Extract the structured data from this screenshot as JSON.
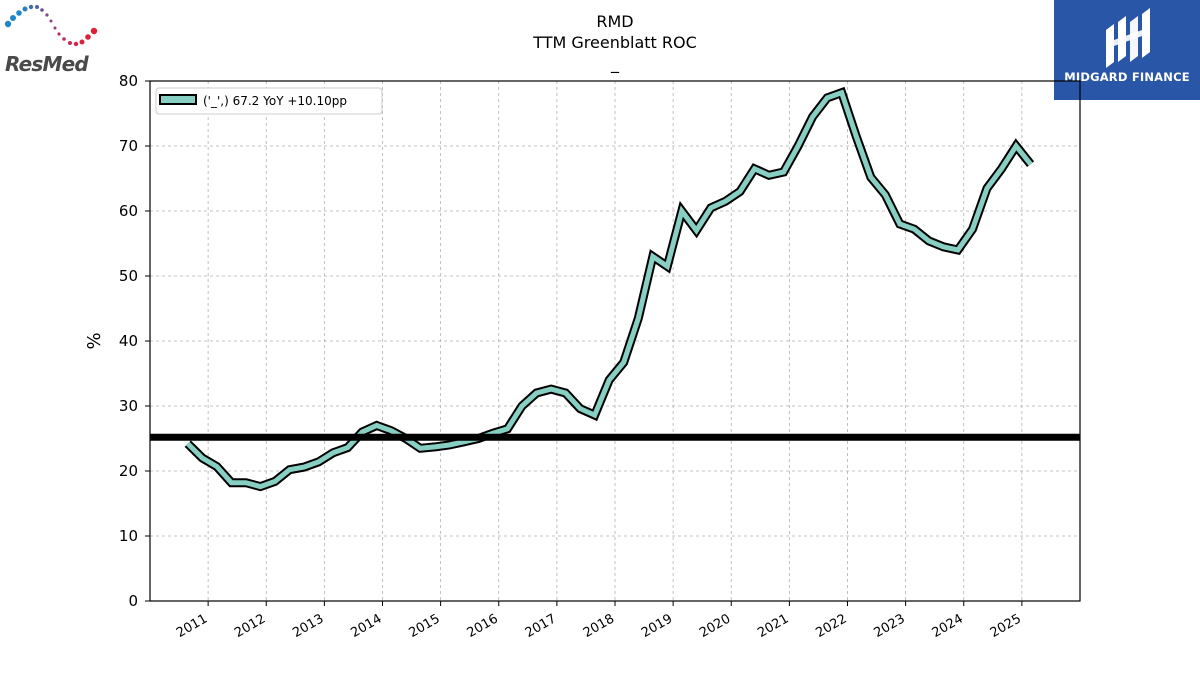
{
  "brand_left": {
    "name": "ResMed"
  },
  "brand_right": {
    "name": "MIDGARD FINANCE"
  },
  "chart_data": {
    "type": "line",
    "title": "RMD",
    "subtitle": "TTM Greenblatt ROC",
    "subtitle2": "_",
    "xlabel": "",
    "ylabel": "%",
    "ylim": [
      0,
      80
    ],
    "xlim": [
      2010.0,
      2026.0
    ],
    "yticks": [
      0,
      10,
      20,
      30,
      40,
      50,
      60,
      70,
      80
    ],
    "xticks": [
      "2011",
      "2012",
      "2013",
      "2014",
      "2015",
      "2016",
      "2017",
      "2018",
      "2019",
      "2020",
      "2021",
      "2022",
      "2023",
      "2024",
      "2025"
    ],
    "grid": true,
    "legend_position": "top-left",
    "colors": {
      "line": "#88cfc3",
      "outline": "#000000",
      "hline": "#000000"
    },
    "hline": {
      "value": 25.2
    },
    "series": [
      {
        "name": "('_',) 67.2 YoY +10.10pp",
        "x": [
          2010.65,
          2010.9,
          2011.15,
          2011.4,
          2011.65,
          2011.9,
          2012.15,
          2012.4,
          2012.65,
          2012.9,
          2013.15,
          2013.4,
          2013.65,
          2013.9,
          2014.15,
          2014.4,
          2014.65,
          2014.9,
          2015.15,
          2015.4,
          2015.65,
          2015.9,
          2016.15,
          2016.4,
          2016.65,
          2016.9,
          2017.15,
          2017.4,
          2017.65,
          2017.9,
          2018.15,
          2018.4,
          2018.65,
          2018.9,
          2019.15,
          2019.4,
          2019.65,
          2019.9,
          2020.15,
          2020.4,
          2020.65,
          2020.9,
          2021.15,
          2021.4,
          2021.65,
          2021.9,
          2022.15,
          2022.4,
          2022.65,
          2022.9,
          2023.15,
          2023.4,
          2023.65,
          2023.9,
          2024.15,
          2024.4,
          2024.65,
          2024.9,
          2025.15
        ],
        "values": [
          24.2,
          22.0,
          20.7,
          18.2,
          18.2,
          17.6,
          18.4,
          20.2,
          20.6,
          21.4,
          22.8,
          23.6,
          26.0,
          27.0,
          26.2,
          25.0,
          23.5,
          23.7,
          24.0,
          24.5,
          25.0,
          25.8,
          26.5,
          30.0,
          32.0,
          32.6,
          32.0,
          29.6,
          28.6,
          34.0,
          36.7,
          43.5,
          53.0,
          51.5,
          60.0,
          57.0,
          60.5,
          61.5,
          63.0,
          66.5,
          65.5,
          66.0,
          70.0,
          74.5,
          77.4,
          78.2,
          71.5,
          65.2,
          62.5,
          58.0,
          57.2,
          55.4,
          54.5,
          54.0,
          57.2,
          63.5,
          66.5,
          70.0,
          67.2
        ]
      }
    ]
  }
}
